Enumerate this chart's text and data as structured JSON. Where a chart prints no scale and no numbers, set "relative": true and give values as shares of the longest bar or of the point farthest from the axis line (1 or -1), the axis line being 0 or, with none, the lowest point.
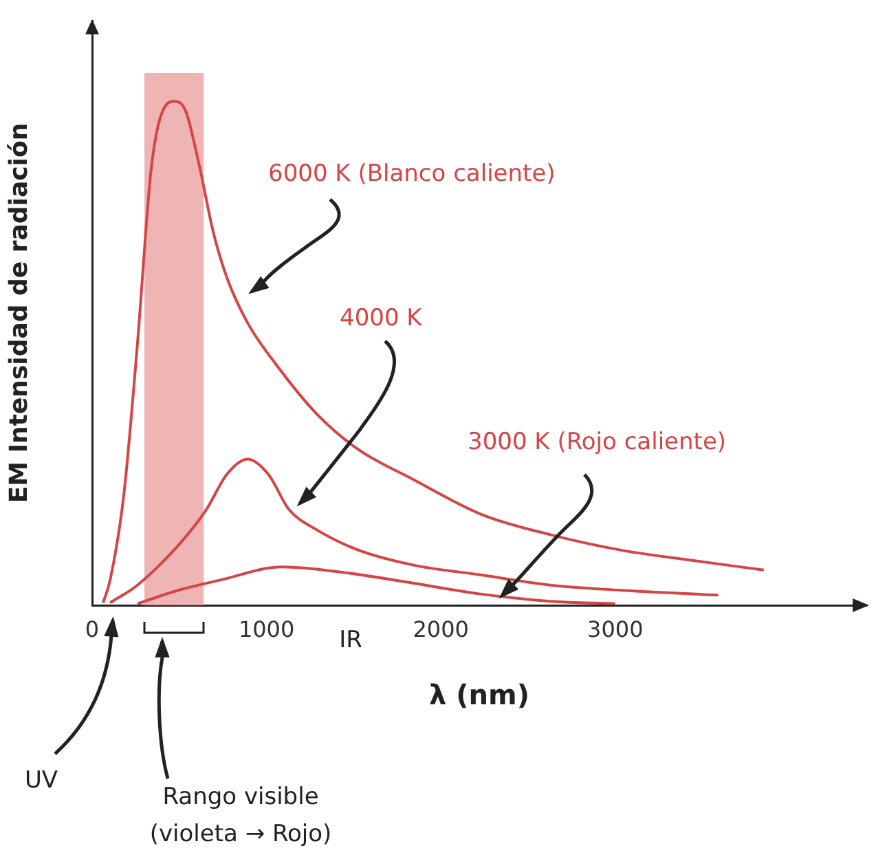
{
  "chart_data": {
    "type": "line",
    "relative": true,
    "xlabel": "λ (nm)",
    "ylabel": "EM Intensidad de radiación",
    "xlim": [
      0,
      4440
    ],
    "xticks": [
      0,
      1000,
      2000,
      3000
    ],
    "series": [
      {
        "name": "6000 K (Blanco caliente)",
        "color": "#d64545",
        "x": [
          63,
          103,
          182,
          260,
          340,
          418,
          474,
          537,
          616,
          695,
          773,
          892,
          1050,
          1287,
          1523,
          1839,
          2234,
          2628,
          3023,
          3418,
          3852
        ],
        "values": [
          0.005,
          0.05,
          0.22,
          0.52,
          0.87,
          0.99,
          1,
          0.98,
          0.87,
          0.74,
          0.65,
          0.56,
          0.48,
          0.38,
          0.31,
          0.25,
          0.18,
          0.14,
          0.11,
          0.09,
          0.07
        ]
      },
      {
        "name": "4000 K",
        "color": "#d64545",
        "x": [
          103,
          260,
          497,
          655,
          773,
          892,
          1010,
          1129,
          1287,
          1523,
          1839,
          2234,
          2628,
          3023,
          3590
        ],
        "values": [
          0.005,
          0.04,
          0.12,
          0.19,
          0.26,
          0.29,
          0.26,
          0.19,
          0.15,
          0.11,
          0.08,
          0.06,
          0.04,
          0.03,
          0.02
        ]
      },
      {
        "name": "3000 K (Rojo caliente)",
        "color": "#d64545",
        "x": [
          260,
          497,
          734,
          1089,
          1444,
          1839,
          2234,
          2628,
          3000
        ],
        "values": [
          0.003,
          0.03,
          0.05,
          0.076,
          0.065,
          0.044,
          0.022,
          0.008,
          0.003
        ]
      }
    ],
    "bands": [
      {
        "axis": "x",
        "from": 300,
        "to": 640,
        "color": "#eba3a3"
      }
    ],
    "annotations": [
      "IR",
      "UV",
      "Rango visible",
      "(violeta → Rojo)"
    ],
    "legend": false,
    "grid": false
  }
}
